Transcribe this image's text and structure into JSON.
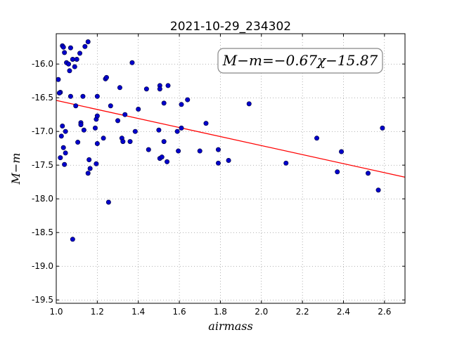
{
  "chart_data": {
    "type": "scatter",
    "title": "2021-10-29_234302",
    "xlabel": "airmass",
    "ylabel": "M−m",
    "xlim": [
      1.0,
      2.7
    ],
    "ylim": [
      -19.55,
      -15.55
    ],
    "ylim_inverted": true,
    "x_ticks": [
      "1.0",
      "1.2",
      "1.4",
      "1.6",
      "1.8",
      "2.0",
      "2.2",
      "2.4",
      "2.6"
    ],
    "y_ticks": [
      "-16.0",
      "-16.5",
      "-17.0",
      "-17.5",
      "-18.0",
      "-18.5",
      "-19.0",
      "-19.5"
    ],
    "grid": true,
    "annotation": "M−m=−0.67χ−15.87",
    "fit": {
      "slope": -0.67,
      "intercept": -15.87,
      "color": "#ff0000"
    },
    "point_color": "#0000cc",
    "points": [
      [
        1.01,
        -16.23
      ],
      [
        1.02,
        -16.42
      ],
      [
        1.015,
        -16.43
      ],
      [
        1.03,
        -15.73
      ],
      [
        1.035,
        -15.75
      ],
      [
        1.04,
        -15.83
      ],
      [
        1.05,
        -15.98
      ],
      [
        1.06,
        -16.0
      ],
      [
        1.065,
        -16.1
      ],
      [
        1.07,
        -15.76
      ],
      [
        1.08,
        -15.93
      ],
      [
        1.09,
        -16.04
      ],
      [
        1.1,
        -15.93
      ],
      [
        1.115,
        -15.84
      ],
      [
        1.14,
        -15.74
      ],
      [
        1.155,
        -15.67
      ],
      [
        1.03,
        -16.92
      ],
      [
        1.045,
        -17.0
      ],
      [
        1.025,
        -17.07
      ],
      [
        1.035,
        -17.24
      ],
      [
        1.045,
        -17.32
      ],
      [
        1.04,
        -17.49
      ],
      [
        1.02,
        -17.39
      ],
      [
        1.07,
        -16.48
      ],
      [
        1.095,
        -16.62
      ],
      [
        1.12,
        -16.87
      ],
      [
        1.12,
        -16.9
      ],
      [
        1.13,
        -16.48
      ],
      [
        1.135,
        -16.98
      ],
      [
        1.105,
        -17.16
      ],
      [
        1.16,
        -17.42
      ],
      [
        1.165,
        -17.55
      ],
      [
        1.155,
        -17.62
      ],
      [
        1.19,
        -16.95
      ],
      [
        1.195,
        -16.82
      ],
      [
        1.2,
        -16.77
      ],
      [
        1.2,
        -16.48
      ],
      [
        1.195,
        -17.48
      ],
      [
        1.2,
        -17.18
      ],
      [
        1.23,
        -17.1
      ],
      [
        1.24,
        -16.22
      ],
      [
        1.245,
        -16.2
      ],
      [
        1.265,
        -16.62
      ],
      [
        1.255,
        -18.05
      ],
      [
        1.08,
        -18.6
      ],
      [
        1.3,
        -16.84
      ],
      [
        1.31,
        -16.35
      ],
      [
        1.32,
        -17.1
      ],
      [
        1.325,
        -17.15
      ],
      [
        1.335,
        -16.75
      ],
      [
        1.36,
        -17.15
      ],
      [
        1.37,
        -15.98
      ],
      [
        1.385,
        -17.0
      ],
      [
        1.4,
        -16.67
      ],
      [
        1.44,
        -16.37
      ],
      [
        1.45,
        -17.27
      ],
      [
        1.5,
        -16.98
      ],
      [
        1.505,
        -16.32
      ],
      [
        1.505,
        -16.37
      ],
      [
        1.505,
        -17.4
      ],
      [
        1.515,
        -17.38
      ],
      [
        1.525,
        -16.58
      ],
      [
        1.525,
        -17.15
      ],
      [
        1.54,
        -17.45
      ],
      [
        1.545,
        -16.32
      ],
      [
        1.59,
        -17.0
      ],
      [
        1.595,
        -17.29
      ],
      [
        1.61,
        -16.6
      ],
      [
        1.61,
        -16.95
      ],
      [
        1.64,
        -16.53
      ],
      [
        1.7,
        -17.29
      ],
      [
        1.73,
        -16.88
      ],
      [
        1.79,
        -17.27
      ],
      [
        1.79,
        -17.47
      ],
      [
        1.84,
        -17.43
      ],
      [
        1.94,
        -16.59
      ],
      [
        2.12,
        -17.47
      ],
      [
        2.27,
        -17.1
      ],
      [
        2.37,
        -17.6
      ],
      [
        2.39,
        -17.3
      ],
      [
        2.52,
        -17.62
      ],
      [
        2.57,
        -17.87
      ],
      [
        2.59,
        -16.95
      ]
    ]
  }
}
